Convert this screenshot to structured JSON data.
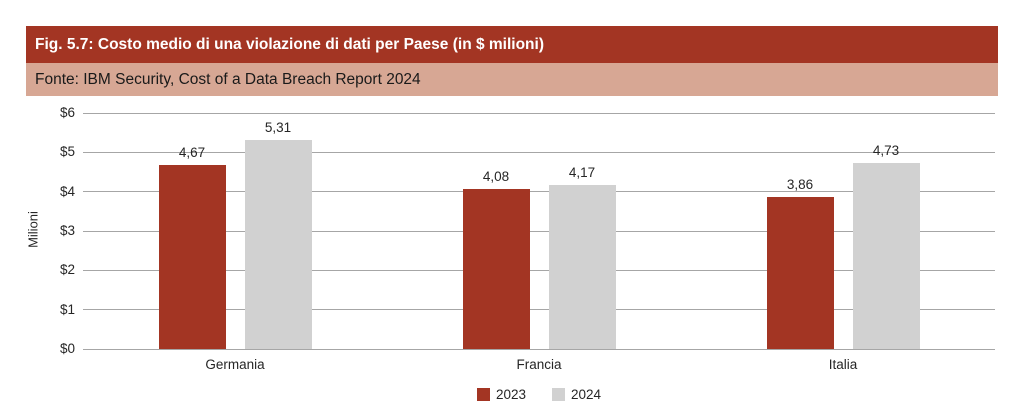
{
  "header": {
    "title": "Fig. 5.7: Costo medio di una violazione di dati per Paese (in $ milioni)",
    "title_bg": "#A33523",
    "title_color": "#FFFFFF",
    "source": "Fonte: IBM Security, Cost of a Data Breach Report 2024",
    "source_bg": "#D7A794",
    "source_color": "#1A1A1A"
  },
  "chart_data": {
    "type": "bar",
    "title": "Fig. 5.7: Costo medio di una violazione di dati per Paese (in $ milioni)",
    "source": "Fonte: IBM Security, Cost of a Data Breach Report 2024",
    "categories": [
      "Germania",
      "Francia",
      "Italia"
    ],
    "series": [
      {
        "name": "2023",
        "color": "#A33523",
        "values": [
          4.67,
          4.08,
          3.86
        ],
        "value_labels": [
          "4,67",
          "4,08",
          "3,86"
        ]
      },
      {
        "name": "2024",
        "color": "#D1D1D1",
        "values": [
          5.31,
          4.17,
          4.73
        ],
        "value_labels": [
          "5,31",
          "4,17",
          "4,73"
        ]
      }
    ],
    "xlabel": "",
    "ylabel": "Milioni",
    "ylim": [
      0,
      6
    ],
    "yticks": [
      0,
      1,
      2,
      3,
      4,
      5,
      6
    ],
    "ytick_labels": [
      "$0",
      "$1",
      "$2",
      "$3",
      "$4",
      "$5",
      "$6"
    ],
    "grid": "horizontal",
    "gridline_color": "#A6A6A6",
    "text_color": "#262626",
    "legend_position": "bottom-center"
  }
}
